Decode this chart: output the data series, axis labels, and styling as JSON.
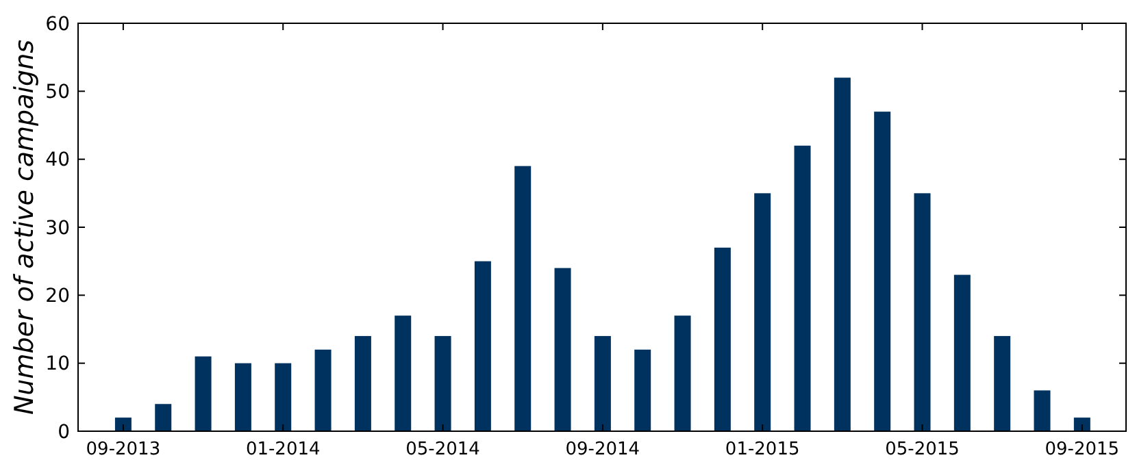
{
  "chart_data": {
    "type": "bar",
    "ylabel": "Number of active campaigns",
    "categories": [
      "09-2013",
      null,
      null,
      null,
      "01-2014",
      null,
      null,
      null,
      "05-2014",
      null,
      null,
      null,
      "09-2014",
      null,
      null,
      null,
      "01-2015",
      null,
      null,
      null,
      "05-2015",
      null,
      null,
      null,
      "09-2015"
    ],
    "values": [
      2,
      4,
      11,
      10,
      10,
      12,
      14,
      17,
      14,
      25,
      39,
      24,
      14,
      12,
      17,
      27,
      35,
      42,
      52,
      47,
      35,
      23,
      14,
      6,
      2
    ],
    "color": "#00325f",
    "ylim": [
      0,
      60
    ],
    "yticks": [
      0,
      10,
      20,
      30,
      40,
      50,
      60
    ],
    "grid": false
  }
}
